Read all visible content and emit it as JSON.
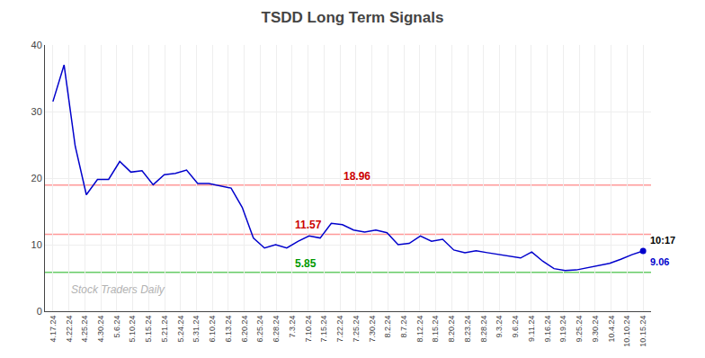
{
  "chart_data": {
    "type": "line",
    "title": "TSDD Long Term Signals",
    "color": "#0000cc",
    "x": [
      0,
      0.698113,
      1.396226,
      2.09434,
      2.792453,
      3.490566,
      4.188679,
      4.886792,
      5.584906,
      6.283019,
      6.981132,
      7.679245,
      8.377358,
      9.075472,
      9.773585,
      10.471698,
      11.169811,
      11.867925,
      12.566038,
      13.264151,
      13.962264,
      14.660377,
      15.358491,
      16.056604,
      16.754717,
      17.45283,
      18.150943,
      18.849057,
      19.54717,
      20.245283,
      20.943396,
      21.641509,
      22.339623,
      23.037736,
      23.735849,
      24.433962,
      25.132075,
      25.830189,
      26.528302,
      27.226415,
      27.924528,
      28.622642,
      29.320755,
      30.018868,
      30.716981,
      31.415094,
      32.113208,
      32.811321,
      33.509434,
      34.207547,
      34.90566,
      35.603774,
      36.301887,
      37
    ],
    "values": [
      31.5,
      37.0,
      24.8,
      17.5,
      19.8,
      19.8,
      22.5,
      20.9,
      21.1,
      19.0,
      20.5,
      20.7,
      21.2,
      19.2,
      19.2,
      18.9,
      18.5,
      15.6,
      11.0,
      9.5,
      10.0,
      9.5,
      10.5,
      11.3,
      11.0,
      13.2,
      13.0,
      12.2,
      11.9,
      12.2,
      11.8,
      10.0,
      10.2,
      11.3,
      10.5,
      10.8,
      9.2,
      8.8,
      9.1,
      8.8,
      8.5,
      8.2,
      8.0,
      8.9,
      7.5,
      6.4,
      6.1,
      6.2,
      6.5,
      6.8,
      7.2,
      7.8,
      8.5,
      9.06
    ],
    "xlim": [
      -0.5,
      37.5
    ],
    "xticks": [
      {
        "value": 0,
        "label": "4.17.24"
      },
      {
        "value": 1,
        "label": "4.22.24"
      },
      {
        "value": 2,
        "label": "4.25.24"
      },
      {
        "value": 3,
        "label": "4.30.24"
      },
      {
        "value": 4,
        "label": "5.6.24"
      },
      {
        "value": 5,
        "label": "5.10.24"
      },
      {
        "value": 6,
        "label": "5.15.24"
      },
      {
        "value": 7,
        "label": "5.21.24"
      },
      {
        "value": 8,
        "label": "5.24.24"
      },
      {
        "value": 9,
        "label": "5.31.24"
      },
      {
        "value": 10,
        "label": "6.10.24"
      },
      {
        "value": 11,
        "label": "6.13.24"
      },
      {
        "value": 12,
        "label": "6.20.24"
      },
      {
        "value": 13,
        "label": "6.25.24"
      },
      {
        "value": 14,
        "label": "6.28.24"
      },
      {
        "value": 15,
        "label": "7.3.24"
      },
      {
        "value": 16,
        "label": "7.10.24"
      },
      {
        "value": 17,
        "label": "7.15.24"
      },
      {
        "value": 18,
        "label": "7.22.24"
      },
      {
        "value": 19,
        "label": "7.25.24"
      },
      {
        "value": 20,
        "label": "7.30.24"
      },
      {
        "value": 21,
        "label": "8.2.24"
      },
      {
        "value": 22,
        "label": "8.7.24"
      },
      {
        "value": 23,
        "label": "8.12.24"
      },
      {
        "value": 24,
        "label": "8.15.24"
      },
      {
        "value": 25,
        "label": "8.20.24"
      },
      {
        "value": 26,
        "label": "8.23.24"
      },
      {
        "value": 27,
        "label": "8.28.24"
      },
      {
        "value": 28,
        "label": "9.3.24"
      },
      {
        "value": 29,
        "label": "9.6.24"
      },
      {
        "value": 30,
        "label": "9.11.24"
      },
      {
        "value": 31,
        "label": "9.16.24"
      },
      {
        "value": 32,
        "label": "9.19.24"
      },
      {
        "value": 33,
        "label": "9.25.24"
      },
      {
        "value": 34,
        "label": "9.30.24"
      },
      {
        "value": 35,
        "label": "10.4.24"
      },
      {
        "value": 36,
        "label": "10.10.24"
      },
      {
        "value": 37,
        "label": "10.15.24"
      }
    ],
    "ylim": [
      0,
      40
    ],
    "yticks": [
      0,
      10,
      20,
      30,
      40
    ],
    "grid": true,
    "hlines": [
      {
        "value": 18.96,
        "color": "#ff9999",
        "label": "18.96",
        "label_color": "#cc0000"
      },
      {
        "value": 11.57,
        "color": "#ff9999",
        "label": "11.57",
        "label_color": "#cc0000"
      },
      {
        "value": 5.85,
        "color": "#66cc66",
        "label": "5.85",
        "label_color": "#009900"
      }
    ],
    "end_labels": {
      "time": "10:17",
      "value": "9.06",
      "color": "#0000cc"
    },
    "watermark": "Stock Traders Daily"
  }
}
